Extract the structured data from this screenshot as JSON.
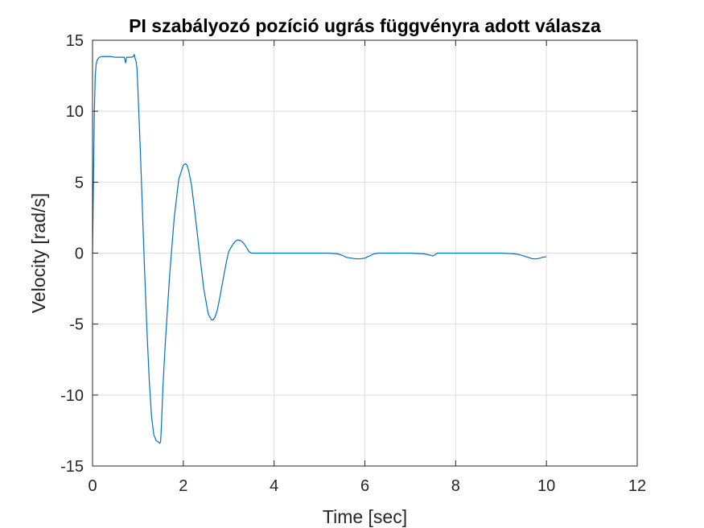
{
  "chart_data": {
    "type": "line",
    "title": "PI szabályozó pozíció ugrás függvényra adott válasza",
    "xlabel": "Time [sec]",
    "ylabel": "Velocity [rad/s]",
    "xlim": [
      0,
      12
    ],
    "ylim": [
      -15,
      15
    ],
    "xticks": [
      0,
      2,
      4,
      6,
      8,
      10,
      12
    ],
    "yticks": [
      -15,
      -10,
      -5,
      0,
      5,
      10,
      15
    ],
    "grid": true,
    "line_color": "#0072BD",
    "series": [
      {
        "x": [
          0,
          0.02,
          0.04,
          0.06,
          0.08,
          0.1,
          0.15,
          0.2,
          0.3,
          0.4,
          0.5,
          0.6,
          0.7,
          0.73,
          0.75,
          0.77,
          0.8,
          0.85,
          0.9,
          0.92,
          0.94,
          0.96,
          0.98,
          1.0,
          1.05,
          1.1,
          1.15,
          1.2,
          1.25,
          1.3,
          1.35,
          1.4,
          1.45,
          1.48,
          1.5,
          1.52,
          1.55,
          1.6,
          1.65,
          1.7,
          1.8,
          1.9,
          2.0,
          2.05,
          2.08,
          2.12,
          2.18,
          2.25,
          2.35,
          2.45,
          2.55,
          2.62,
          2.66,
          2.7,
          2.75,
          2.8,
          2.88,
          2.95,
          3.0,
          3.05,
          3.1,
          3.15,
          3.2,
          3.25,
          3.3,
          3.35,
          3.4,
          3.45,
          3.5,
          3.55,
          4.0,
          4.5,
          5.0,
          5.2,
          5.4,
          5.5,
          5.6,
          5.7,
          5.8,
          5.9,
          6.0,
          6.1,
          6.2,
          6.3,
          6.5,
          7.0,
          7.3,
          7.45,
          7.5,
          7.55,
          7.6,
          7.8,
          8.0,
          8.5,
          9.0,
          9.3,
          9.4,
          9.5,
          9.6,
          9.7,
          9.8,
          9.9,
          10.0
        ],
        "y": [
          0,
          5,
          10,
          12.5,
          13.3,
          13.6,
          13.8,
          13.85,
          13.85,
          13.85,
          13.8,
          13.8,
          13.8,
          13.4,
          13.8,
          13.8,
          13.8,
          13.8,
          13.85,
          14.0,
          13.7,
          13.5,
          13.0,
          11.5,
          7.5,
          3.0,
          -1.5,
          -5.5,
          -9.0,
          -11.5,
          -12.8,
          -13.2,
          -13.3,
          -13.4,
          -13.3,
          -12.0,
          -9.5,
          -6.5,
          -4.0,
          -1.5,
          2.5,
          5.2,
          6.2,
          6.3,
          6.2,
          5.8,
          4.8,
          3.0,
          0.2,
          -2.5,
          -4.3,
          -4.7,
          -4.7,
          -4.5,
          -4.0,
          -3.2,
          -1.8,
          -0.6,
          0.1,
          0.4,
          0.65,
          0.85,
          0.93,
          0.9,
          0.8,
          0.6,
          0.35,
          0.1,
          0,
          0,
          0,
          0,
          0,
          0,
          -0.05,
          -0.15,
          -0.3,
          -0.35,
          -0.4,
          -0.4,
          -0.35,
          -0.2,
          -0.05,
          0,
          0,
          0,
          -0.05,
          -0.15,
          -0.2,
          -0.1,
          0,
          0,
          0,
          0,
          0,
          -0.05,
          -0.1,
          -0.2,
          -0.3,
          -0.4,
          -0.4,
          -0.3,
          -0.25
        ]
      }
    ]
  }
}
